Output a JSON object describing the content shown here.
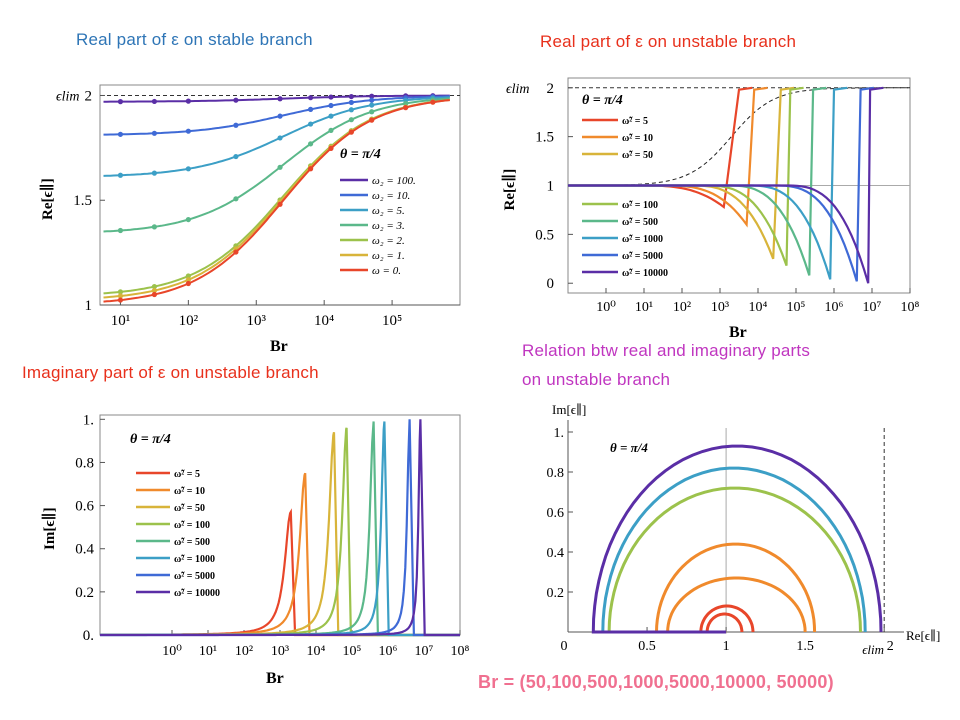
{
  "colors": {
    "caption_blue": "#2e75b6",
    "caption_red": "#e8301c",
    "caption_magenta": "#c036c0",
    "caption_pink": "#f07090",
    "rainbow": [
      "#e8462a",
      "#f08a2c",
      "#d8b43a",
      "#9cc24c",
      "#5bb88a",
      "#3c9fc6",
      "#3f6ad6",
      "#5a2ea6"
    ]
  },
  "captions": {
    "panel1": "Real part of ε on stable branch",
    "panel2": "Real part of ε on unstable branch",
    "panel3": "Imaginary part of ε on unstable branch",
    "panel4_line1": "Relation btw real and imaginary parts",
    "panel4_line2": "on unstable branch",
    "footer": "Br =  (50,100,500,1000,5000,10000, 50000)"
  },
  "chart_data": [
    {
      "id": "stable-real",
      "type": "line",
      "title": "Real part of ε on stable branch",
      "annotation": "θ = π/4",
      "xlabel": "Br",
      "ylabel": "Re[ϵ∥]",
      "xscale": "log",
      "xlim": [
        5,
        1000000
      ],
      "ylim": [
        1,
        2.05
      ],
      "xticks": [
        "10¹",
        "10²",
        "10³",
        "10⁴",
        "10⁵"
      ],
      "yticks": [
        "1",
        "1.5",
        "2"
      ],
      "reference_lines": [
        {
          "label": "ϵlim",
          "y": 2,
          "style": "dashed"
        }
      ],
      "legend_position": "right",
      "series": [
        {
          "name": "ω₂ = 100.",
          "start": 1.97
        },
        {
          "name": "ω₂ = 10.",
          "start": 1.81
        },
        {
          "name": "ω₂ = 5.",
          "start": 1.61
        },
        {
          "name": "ω₂ = 3.",
          "start": 1.34
        },
        {
          "name": "ω₂ = 2.",
          "start": 1.04
        },
        {
          "name": "ω₂ = 1.",
          "start": 1.02
        },
        {
          "name": "ω = 0.",
          "start": 1.0
        }
      ]
    },
    {
      "id": "unstable-real",
      "type": "line",
      "title": "Real part of ε on unstable branch",
      "annotation": "θ = π/4",
      "xlabel": "Br",
      "ylabel": "Re[ϵ∥]",
      "xscale": "log",
      "xlim": [
        0.1,
        100000000
      ],
      "ylim": [
        -0.1,
        2.1
      ],
      "xticks": [
        "10⁰",
        "10¹",
        "10²",
        "10³",
        "10⁴",
        "10⁵",
        "10⁶",
        "10⁷",
        "10⁸"
      ],
      "yticks": [
        "0",
        "0.5",
        "1",
        "1.5",
        "2"
      ],
      "reference_lines": [
        {
          "label": "ϵlim",
          "y": 2,
          "style": "dashed"
        }
      ],
      "legend_groups": [
        "top-left",
        "bottom-left"
      ],
      "series": [
        {
          "name": "ω̃² = 5",
          "dip_log10": 3.1,
          "dip_value": 0.78,
          "vertical_log10": 3.5
        },
        {
          "name": "ω̃² = 10",
          "dip_log10": 3.7,
          "dip_value": 0.6,
          "vertical_log10": 3.9
        },
        {
          "name": "ω̃² = 50",
          "dip_log10": 4.4,
          "dip_value": 0.25,
          "vertical_log10": 4.6
        },
        {
          "name": "ω̃² = 100",
          "dip_log10": 4.75,
          "dip_value": 0.18,
          "vertical_log10": 4.85
        },
        {
          "name": "ω̃² = 500",
          "dip_log10": 5.35,
          "dip_value": 0.08,
          "vertical_log10": 5.45
        },
        {
          "name": "ω̃² = 1000",
          "dip_log10": 5.9,
          "dip_value": 0.04,
          "vertical_log10": 6.0
        },
        {
          "name": "ω̃² = 5000",
          "dip_log10": 6.6,
          "dip_value": 0.02,
          "vertical_log10": 6.7
        },
        {
          "name": "ω̃² = 10000",
          "dip_log10": 6.9,
          "dip_value": 0.0,
          "vertical_log10": 6.95
        }
      ]
    },
    {
      "id": "unstable-imag",
      "type": "line",
      "title": "Imaginary part of ε on unstable branch",
      "annotation": "θ = π/4",
      "xlabel": "Br",
      "ylabel": "Im[ϵ∥]",
      "xscale": "log",
      "xlim": [
        0.01,
        100000000
      ],
      "ylim": [
        0,
        1.02
      ],
      "xticks": [
        "10⁰",
        "10¹",
        "10²",
        "10³",
        "10⁴",
        "10⁵",
        "10⁶",
        "10⁷",
        "10⁸"
      ],
      "yticks": [
        "0.",
        "0.2",
        "0.4",
        "0.6",
        "0.8",
        "1."
      ],
      "legend_position": "left",
      "series": [
        {
          "name": "ω̃² = 5",
          "peak_log10": 3.3,
          "peak": 0.57
        },
        {
          "name": "ω̃² = 10",
          "peak_log10": 3.7,
          "peak": 0.75
        },
        {
          "name": "ω̃² = 50",
          "peak_log10": 4.5,
          "peak": 0.94
        },
        {
          "name": "ω̃² = 100",
          "peak_log10": 4.85,
          "peak": 0.96
        },
        {
          "name": "ω̃² = 500",
          "peak_log10": 5.6,
          "peak": 0.99
        },
        {
          "name": "ω̃² = 1000",
          "peak_log10": 5.9,
          "peak": 0.99
        },
        {
          "name": "ω̃² = 5000",
          "peak_log10": 6.6,
          "peak": 1.0
        },
        {
          "name": "ω̃² = 10000",
          "peak_log10": 6.9,
          "peak": 1.0
        }
      ]
    },
    {
      "id": "real-vs-imag",
      "type": "line",
      "title": "Relation btw real and imaginary parts on unstable branch",
      "annotation": "θ = π/4",
      "xlabel": "Re[ϵ∥]",
      "ylabel": "Im[ϵ∥]",
      "xlim": [
        0,
        2.1
      ],
      "ylim": [
        0,
        1.02
      ],
      "xticks": [
        "0",
        "0.5",
        "1",
        "1.5",
        "2"
      ],
      "yticks": [
        "0",
        "0.2",
        "0.4",
        "0.6",
        "0.8",
        "1."
      ],
      "reference_lines": [
        {
          "label": "ϵlim",
          "x": 2,
          "style": "dashed"
        }
      ],
      "series": [
        {
          "name": "Br = 50",
          "left_re": 0.88,
          "right_re": 1.1,
          "top_im": 0.09
        },
        {
          "name": "Br = 100",
          "left_re": 0.84,
          "right_re": 1.17,
          "top_im": 0.13
        },
        {
          "name": "Br = 500",
          "left_re": 0.63,
          "right_re": 1.5,
          "top_im": 0.27
        },
        {
          "name": "Br = 1000",
          "left_re": 0.56,
          "right_re": 1.56,
          "top_im": 0.44
        },
        {
          "name": "Br = 5000",
          "left_re": 0.26,
          "right_re": 1.85,
          "top_im": 0.72
        },
        {
          "name": "Br = 10000",
          "left_re": 0.22,
          "right_re": 1.88,
          "top_im": 0.82
        },
        {
          "name": "Br = 50000",
          "left_re": 0.16,
          "right_re": 1.98,
          "top_im": 0.93
        }
      ]
    }
  ]
}
